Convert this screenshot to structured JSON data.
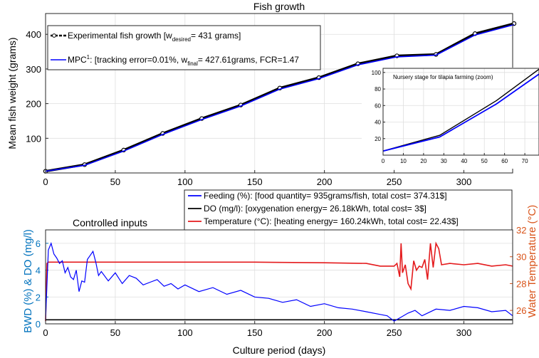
{
  "chart_data": [
    {
      "type": "line",
      "title": "Fish growth",
      "xlabel": "",
      "ylabel": "Mean fish weight (grams)",
      "xlim": [
        0,
        335
      ],
      "ylim": [
        0,
        460
      ],
      "xticks": [
        0,
        50,
        100,
        150,
        200,
        250,
        300
      ],
      "yticks": [
        100,
        200,
        300,
        400
      ],
      "grid": true,
      "legend": {
        "placement": "top-left"
      },
      "series": [
        {
          "name": "Experimental fish growth",
          "legend": {
            "pre": "Experimental fish growth [w",
            "sub": "desired",
            "post": "= 431 grams]"
          },
          "color": "#000000",
          "marker": "circle",
          "x": [
            0,
            28,
            56,
            84,
            112,
            140,
            168,
            196,
            224,
            252,
            280,
            308,
            336
          ],
          "y": [
            5,
            24,
            66,
            114,
            157,
            196,
            245,
            275,
            315,
            338,
            342,
            402,
            431
          ]
        },
        {
          "name": "MPC",
          "legend": {
            "pre": "MPC",
            "sup": "1",
            "mid": ": [tracking error=0.01%, w",
            "sub": "final",
            "post": "= 427.61grams, FCR=1.47"
          },
          "color": "#0000ff",
          "x": [
            0,
            28,
            56,
            84,
            112,
            140,
            168,
            196,
            224,
            252,
            280,
            308,
            336
          ],
          "y": [
            5,
            22,
            63,
            111,
            154,
            193,
            242,
            272,
            312,
            335,
            340,
            398,
            428
          ]
        }
      ]
    },
    {
      "type": "line",
      "title": "Nursery stage for tilapia farming (zoom)",
      "xlim": [
        0,
        77
      ],
      "ylim": [
        0,
        105
      ],
      "xticks": [
        0,
        10,
        20,
        30,
        40,
        50,
        60,
        70
      ],
      "yticks": [
        20,
        40,
        60,
        80,
        100
      ],
      "grid": true,
      "series": [
        {
          "color": "#000000",
          "x": [
            0,
            28,
            56,
            77
          ],
          "y": [
            5,
            24,
            66,
            104
          ]
        },
        {
          "color": "#0000ff",
          "x": [
            0,
            28,
            56,
            77
          ],
          "y": [
            5,
            22,
            62,
            98
          ]
        }
      ]
    },
    {
      "type": "line",
      "title": "Controlled inputs",
      "xlabel": "Culture period (days)",
      "ylabel": "BWD (%) & DO (mg/l)",
      "ylabel_right": "Water Temperature (°C)",
      "xlim": [
        0,
        335
      ],
      "ylim": [
        0,
        7
      ],
      "ylim_right": [
        25,
        32
      ],
      "xticks": [
        0,
        50,
        100,
        150,
        200,
        250,
        300
      ],
      "yticks": [
        0,
        2,
        4,
        6
      ],
      "yticks_right": [
        26,
        28,
        30,
        32
      ],
      "grid": true,
      "legend": {
        "placement": "top-right"
      },
      "series": [
        {
          "name": "Feeding (%)",
          "legend_text": "Feeding (%): [food quantity= 935grams/fish, total cost= 374.31$]",
          "color": "#0000ff",
          "axis": "left",
          "x": [
            0,
            2,
            4,
            6,
            8,
            10,
            12,
            14,
            16,
            18,
            20,
            22,
            24,
            26,
            28,
            30,
            32,
            34,
            36,
            38,
            40,
            45,
            50,
            55,
            60,
            65,
            70,
            75,
            80,
            85,
            90,
            95,
            100,
            110,
            120,
            130,
            140,
            150,
            160,
            170,
            180,
            190,
            200,
            210,
            220,
            230,
            240,
            245,
            250,
            255,
            260,
            265,
            270,
            280,
            290,
            300,
            310,
            320,
            330,
            335
          ],
          "y": [
            0.3,
            5.5,
            6.0,
            5.2,
            4.9,
            4.5,
            4.7,
            3.8,
            4.2,
            3.5,
            3.3,
            4.0,
            2.4,
            3.2,
            3.1,
            4.8,
            5.1,
            5.4,
            4.6,
            3.6,
            3.9,
            3.2,
            3.8,
            3.0,
            3.6,
            3.4,
            2.9,
            3.1,
            3.3,
            2.8,
            3.0,
            2.6,
            2.9,
            2.4,
            2.7,
            2.2,
            2.5,
            2.0,
            1.9,
            1.6,
            1.8,
            1.3,
            1.5,
            1.2,
            1.1,
            0.9,
            0.7,
            0.6,
            0.2,
            0.5,
            0.8,
            1.0,
            0.6,
            1.1,
            1.0,
            1.3,
            1.2,
            0.9,
            1.0,
            0.6
          ]
        },
        {
          "name": "DO (mg/l)",
          "legend_text": "DO (mg/l): [oxygenation energy= 26.18kWh, total cost= 3$]",
          "color": "#000000",
          "axis": "left",
          "x": [
            0,
            335
          ],
          "y": [
            0.3,
            0.3
          ]
        },
        {
          "name": "Temperature (°C)",
          "legend_text": "Temperature (°C): [heating energy= 160.24kWh, total cost= 22.43$]",
          "color": "#e41a1c",
          "axis": "right",
          "x": [
            0,
            1,
            2,
            50,
            100,
            150,
            200,
            230,
            240,
            250,
            252,
            254,
            255,
            256,
            258,
            260,
            262,
            264,
            266,
            268,
            270,
            272,
            274,
            276,
            278,
            280,
            282,
            284,
            290,
            300,
            310,
            320,
            330,
            335
          ],
          "y": [
            25.2,
            29.5,
            29.6,
            29.6,
            29.6,
            29.6,
            29.55,
            29.5,
            29.3,
            29.3,
            29.5,
            28.5,
            31.0,
            28.8,
            29.4,
            28.0,
            27.6,
            29.7,
            29.0,
            29.3,
            29.2,
            29.8,
            28.3,
            31.0,
            29.2,
            31.0,
            30.6,
            29.4,
            29.5,
            29.4,
            29.5,
            29.3,
            29.4,
            29.3
          ]
        }
      ]
    }
  ]
}
